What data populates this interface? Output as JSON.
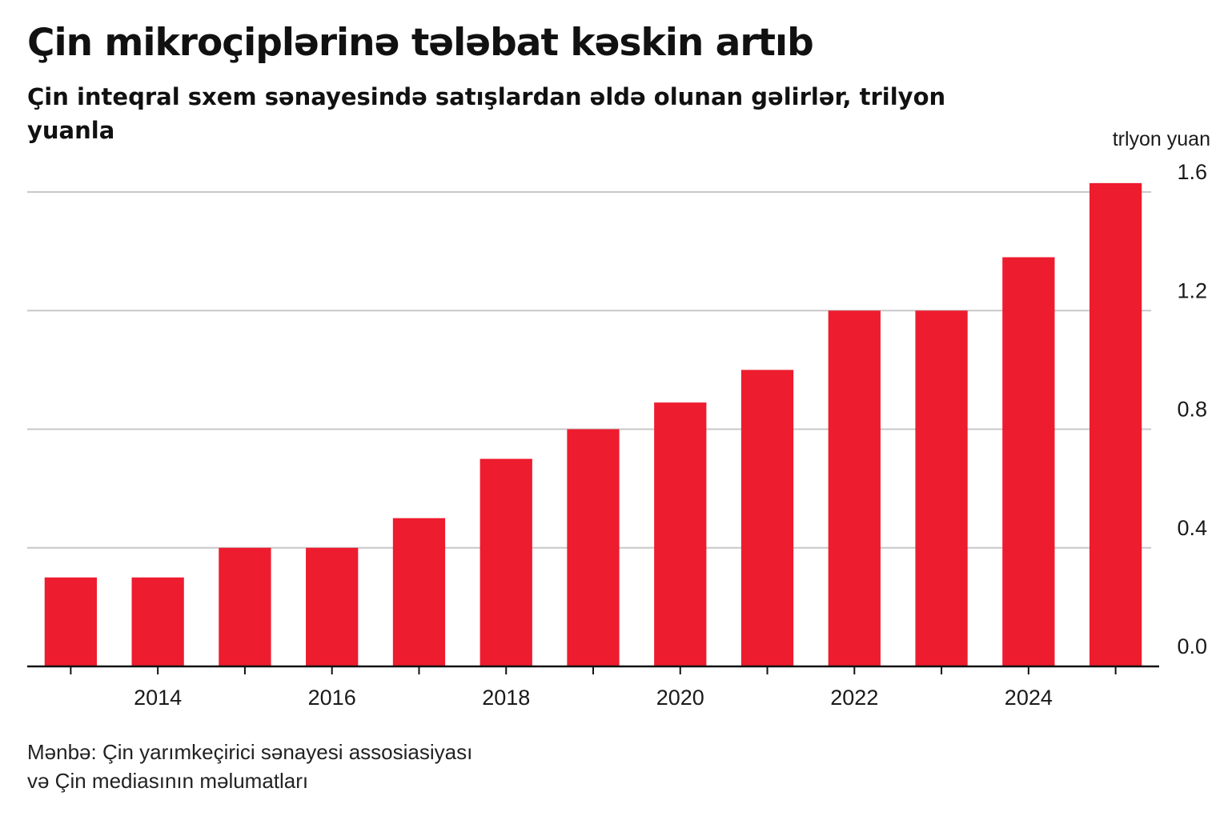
{
  "header": {
    "title": "Çin mikroçiplərinə tələbat kəskin artıb",
    "subtitle": "Çin inteqral sxem sənayesində satışlardan əldə olunan gəlirlər, trilyon yuanla"
  },
  "footer": {
    "source_line1": "Mənbə: Çin yarımkeçirici sənayesi assosiasiyası",
    "source_line2": "və Çin mediasının məlumatları"
  },
  "chart_data": {
    "type": "bar",
    "categories": [
      "2013",
      "2014",
      "2015",
      "2016",
      "2017",
      "2018",
      "2019",
      "2020",
      "2021",
      "2022",
      "2023",
      "2024",
      "2025"
    ],
    "values": [
      0.3,
      0.3,
      0.4,
      0.4,
      0.5,
      0.7,
      0.8,
      0.89,
      1.0,
      1.2,
      1.2,
      1.38,
      1.63
    ],
    "x_tick_labels": [
      "2014",
      "2016",
      "2018",
      "2020",
      "2022",
      "2024"
    ],
    "y_ticks": [
      0.0,
      0.4,
      0.8,
      1.2,
      1.6
    ],
    "y_tick_labels": [
      "0.0",
      "0.4",
      "0.8",
      "1.2",
      "1.6"
    ],
    "y_unit_label": "trlyon yuan",
    "ylim": [
      0,
      1.6
    ],
    "y_axis_side": "right",
    "grid": true,
    "bar_color": "#ed1c2e",
    "grid_color": "#c8c8c8",
    "axis_color": "#111111"
  }
}
